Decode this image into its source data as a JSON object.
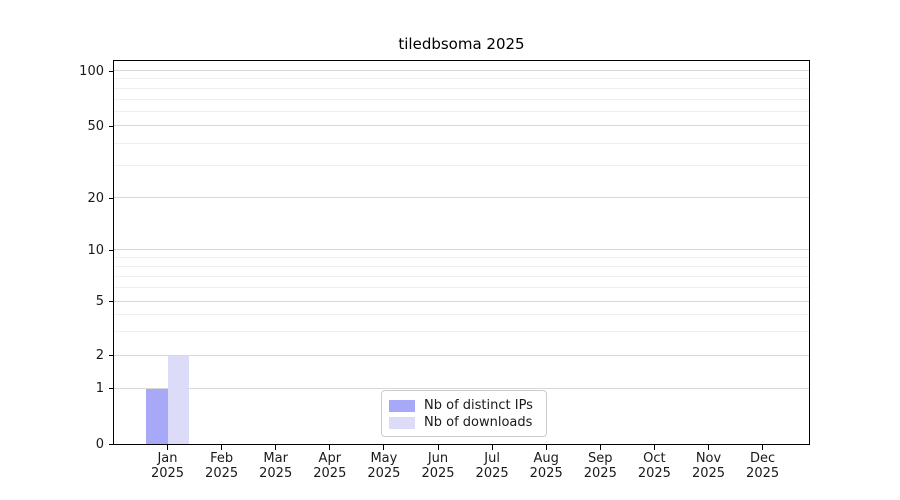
{
  "title": "tiledbsoma 2025",
  "chart_data": {
    "type": "bar",
    "title": "tiledbsoma 2025",
    "categories": [
      {
        "month": "Jan",
        "year": "2025"
      },
      {
        "month": "Feb",
        "year": "2025"
      },
      {
        "month": "Mar",
        "year": "2025"
      },
      {
        "month": "Apr",
        "year": "2025"
      },
      {
        "month": "May",
        "year": "2025"
      },
      {
        "month": "Jun",
        "year": "2025"
      },
      {
        "month": "Jul",
        "year": "2025"
      },
      {
        "month": "Aug",
        "year": "2025"
      },
      {
        "month": "Sep",
        "year": "2025"
      },
      {
        "month": "Oct",
        "year": "2025"
      },
      {
        "month": "Nov",
        "year": "2025"
      },
      {
        "month": "Dec",
        "year": "2025"
      }
    ],
    "series": [
      {
        "name": "Nb of distinct IPs",
        "color": "#a8a8f8",
        "values": [
          1,
          0,
          0,
          0,
          0,
          0,
          0,
          0,
          0,
          0,
          0,
          0
        ]
      },
      {
        "name": "Nb of downloads",
        "color": "#dcdcf8",
        "values": [
          2,
          0,
          0,
          0,
          0,
          0,
          0,
          0,
          0,
          0,
          0,
          0
        ]
      }
    ],
    "yaxis": {
      "scale": "symlog",
      "ticks": [
        0,
        1,
        2,
        5,
        10,
        20,
        50,
        100
      ],
      "minor_ticks": [
        3,
        4,
        6,
        7,
        8,
        9,
        30,
        40,
        60,
        70,
        80,
        90
      ],
      "range_top": 120
    },
    "xlabel": "",
    "ylabel": "",
    "grid": true,
    "legend_position": "bottom-center-inside",
    "colors": {
      "major_grid": "#d8d8d8",
      "minor_grid": "#efefef",
      "spine": "#000000",
      "background": "#ffffff"
    }
  }
}
